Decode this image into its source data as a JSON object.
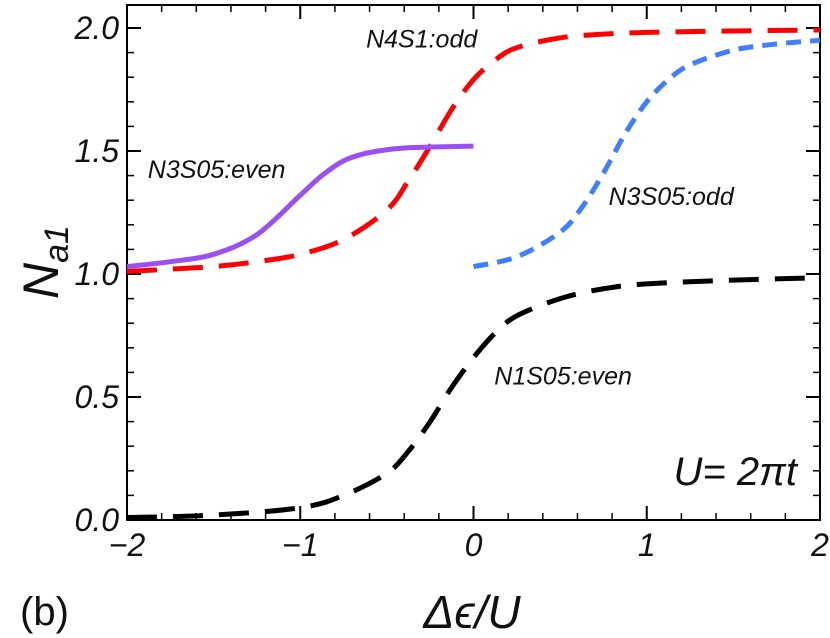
{
  "chart_data": {
    "type": "line",
    "panel_label": "(b)",
    "xlabel": "Δϵ/U",
    "ylabel": {
      "base": "N",
      "subscript": "a1"
    },
    "xlim": [
      -2,
      2
    ],
    "ylim": [
      0,
      2.08
    ],
    "xticks": [
      -2,
      -1,
      0,
      1,
      2
    ],
    "xtick_labels": [
      "−2",
      "−1",
      "0",
      "1",
      "2"
    ],
    "yticks": [
      0,
      0.5,
      1.0,
      1.5,
      2.0
    ],
    "ytick_labels": [
      "0.0",
      "0.5",
      "1.0",
      "1.5",
      "2.0"
    ],
    "u_label": "U= 2πt",
    "series": [
      {
        "name": "N4S1:odd",
        "color": "#ff0000",
        "style": "dash-long",
        "x": [
          -2,
          -1.75,
          -1.5,
          -1.25,
          -1.0,
          -0.75,
          -0.5,
          -0.375,
          -0.25,
          -0.125,
          0,
          0.125,
          0.25,
          0.5,
          0.75,
          1.0,
          1.5,
          2.0
        ],
        "y": [
          1.01,
          1.02,
          1.03,
          1.05,
          1.08,
          1.14,
          1.26,
          1.38,
          1.52,
          1.67,
          1.79,
          1.87,
          1.92,
          1.96,
          1.975,
          1.982,
          1.988,
          1.992
        ]
      },
      {
        "name": "N3S05:even",
        "color": "#9b4ff0",
        "style": "solid",
        "x": [
          -2,
          -1.75,
          -1.5,
          -1.25,
          -1.0,
          -0.875,
          -0.75,
          -0.625,
          -0.5,
          -0.375,
          -0.25,
          -0.125,
          0
        ],
        "y": [
          1.03,
          1.05,
          1.08,
          1.16,
          1.32,
          1.4,
          1.46,
          1.49,
          1.505,
          1.513,
          1.516,
          1.518,
          1.52
        ]
      },
      {
        "name": "N3S05:odd",
        "color": "#3f7fff",
        "style": "dash-short",
        "x": [
          0,
          0.25,
          0.5,
          0.625,
          0.75,
          0.875,
          1.0,
          1.125,
          1.25,
          1.5,
          1.75,
          2.0
        ],
        "y": [
          1.03,
          1.07,
          1.17,
          1.27,
          1.41,
          1.57,
          1.7,
          1.79,
          1.85,
          1.91,
          1.935,
          1.95
        ]
      },
      {
        "name": "N1S05:even",
        "color": "#000000",
        "style": "dash-long",
        "x": [
          -2,
          -1.5,
          -1.0,
          -0.75,
          -0.5,
          -0.375,
          -0.25,
          -0.125,
          0,
          0.125,
          0.25,
          0.5,
          0.75,
          1.0,
          1.5,
          2.0
        ],
        "y": [
          0.01,
          0.02,
          0.05,
          0.1,
          0.19,
          0.28,
          0.4,
          0.54,
          0.66,
          0.76,
          0.83,
          0.9,
          0.94,
          0.96,
          0.975,
          0.985
        ]
      }
    ],
    "annotations": [
      {
        "text": "N4S1:odd",
        "x": -0.62,
        "y": 1.92
      },
      {
        "text": "N3S05:even",
        "x": -1.88,
        "y": 1.39
      },
      {
        "text": "N3S05:odd",
        "x": 0.78,
        "y": 1.28
      },
      {
        "text": "N1S05:even",
        "x": 0.12,
        "y": 0.55
      }
    ]
  }
}
